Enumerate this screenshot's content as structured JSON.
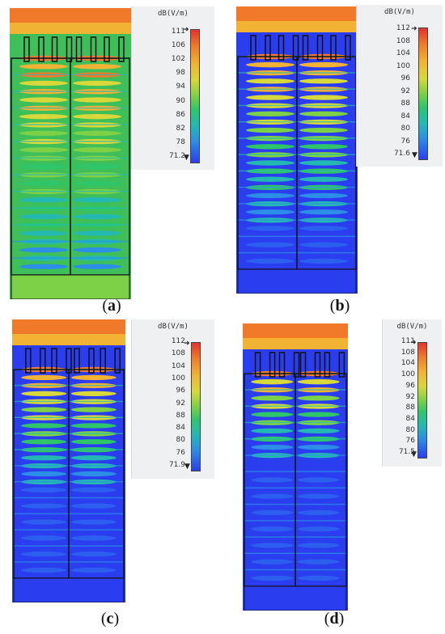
{
  "panels": [
    {
      "id": "a",
      "caption_label": "a",
      "legend_unit": "dB(V/m)",
      "ticks": [
        "111",
        "106",
        "102",
        "98",
        "94",
        "90",
        "86",
        "82",
        "78",
        "71.2"
      ],
      "intensity": 0.95
    },
    {
      "id": "b",
      "caption_label": "b",
      "legend_unit": "dB(V/m)",
      "ticks": [
        "112",
        "108",
        "104",
        "100",
        "96",
        "92",
        "88",
        "84",
        "80",
        "76",
        "71.6"
      ],
      "intensity": 0.7
    },
    {
      "id": "c",
      "caption_label": "c",
      "legend_unit": "dB(V/m)",
      "ticks": [
        "112",
        "108",
        "104",
        "100",
        "96",
        "92",
        "88",
        "84",
        "80",
        "76",
        "71.9"
      ],
      "intensity": 0.45
    },
    {
      "id": "d",
      "caption_label": "d",
      "legend_unit": "dB(V/m)",
      "ticks": [
        "111",
        "108",
        "104",
        "100",
        "96",
        "92",
        "88",
        "84",
        "80",
        "76",
        "71.5"
      ],
      "intensity": 0.3
    }
  ]
}
